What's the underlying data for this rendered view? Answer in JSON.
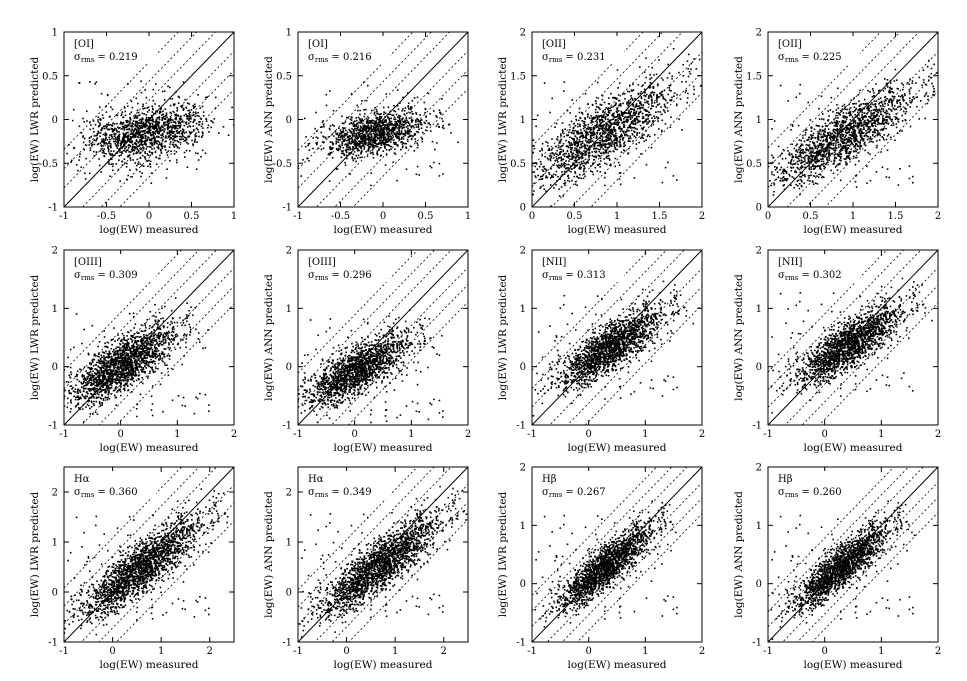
{
  "chart_data": [
    {
      "type": "scatter",
      "label_line": "[OI]",
      "sigma_label": "σ",
      "sigma_sub": "rms",
      "sigma_value": "= 0.219",
      "xlabel": "log(EW) measured",
      "ylabel": "log(EW) LWR predicted",
      "xlim": [
        -1,
        1
      ],
      "ylim": [
        -1,
        1
      ],
      "x_ticks": [
        "-1",
        "-0.5",
        "0",
        "0.5",
        "1"
      ],
      "y_ticks": [
        "-1",
        "-0.5",
        "0",
        "0.5",
        "1"
      ],
      "cloud": {
        "cx": -0.05,
        "cy": -0.15,
        "sx": 0.35,
        "sy": 0.15,
        "slope": 0.15,
        "n": 1300
      },
      "dotted_offsets": [
        -0.657,
        -0.438,
        -0.219,
        0.219,
        0.438,
        0.657
      ]
    },
    {
      "type": "scatter",
      "label_line": "[OI]",
      "sigma_label": "σ",
      "sigma_sub": "rms",
      "sigma_value": "= 0.216",
      "xlabel": "log(EW) measured",
      "ylabel": "log(EW) ANN predicted",
      "xlim": [
        -1,
        1
      ],
      "ylim": [
        -1,
        1
      ],
      "x_ticks": [
        "-1",
        "-0.5",
        "0",
        "0.5",
        "1"
      ],
      "y_ticks": [
        "-1",
        "-0.5",
        "0",
        "0.5",
        "1"
      ],
      "cloud": {
        "cx": -0.08,
        "cy": -0.15,
        "sx": 0.3,
        "sy": 0.12,
        "slope": 0.18,
        "n": 1200
      },
      "dotted_offsets": [
        -0.648,
        -0.432,
        -0.216,
        0.216,
        0.432,
        0.648
      ]
    },
    {
      "type": "scatter",
      "label_line": "[OII]",
      "sigma_label": "σ",
      "sigma_sub": "rms",
      "sigma_value": "= 0.231",
      "xlabel": "log(EW) measured",
      "ylabel": "log(EW) LWR predicted",
      "xlim": [
        0,
        2
      ],
      "ylim": [
        0,
        2
      ],
      "x_ticks": [
        "0",
        "0.5",
        "1",
        "1.5",
        "2"
      ],
      "y_ticks": [
        "0",
        "0.5",
        "1",
        "1.5",
        "2"
      ],
      "cloud": {
        "cx": 0.85,
        "cy": 0.85,
        "sx": 0.4,
        "sy": 0.18,
        "slope": 0.55,
        "n": 1500
      },
      "dotted_offsets": [
        -0.693,
        -0.462,
        -0.231,
        0.231,
        0.462,
        0.693
      ]
    },
    {
      "type": "scatter",
      "label_line": "[OII]",
      "sigma_label": "σ",
      "sigma_sub": "rms",
      "sigma_value": "= 0.225",
      "xlabel": "log(EW) measured",
      "ylabel": "log(EW) ANN predicted",
      "xlim": [
        0,
        2
      ],
      "ylim": [
        0,
        2
      ],
      "x_ticks": [
        "0",
        "0.5",
        "1",
        "1.5",
        "2"
      ],
      "y_ticks": [
        "0",
        "0.5",
        "1",
        "1.5",
        "2"
      ],
      "cloud": {
        "cx": 0.9,
        "cy": 0.82,
        "sx": 0.4,
        "sy": 0.16,
        "slope": 0.55,
        "n": 1500
      },
      "dotted_offsets": [
        -0.675,
        -0.45,
        -0.225,
        0.225,
        0.45,
        0.675
      ]
    },
    {
      "type": "scatter",
      "label_line": "[OIII]",
      "sigma_label": "σ",
      "sigma_sub": "rms",
      "sigma_value": "= 0.309",
      "xlabel": "log(EW) measured",
      "ylabel": "log(EW) LWR predicted",
      "xlim": [
        -1,
        2
      ],
      "ylim": [
        -1,
        2
      ],
      "x_ticks": [
        "-1",
        "0",
        "1",
        "2"
      ],
      "y_ticks": [
        "-1",
        "0",
        "1",
        "2"
      ],
      "cloud": {
        "cx": 0.05,
        "cy": 0.05,
        "sx": 0.45,
        "sy": 0.22,
        "slope": 0.55,
        "n": 1800
      },
      "dotted_offsets": [
        -0.927,
        -0.618,
        -0.309,
        0.309,
        0.618,
        0.927
      ]
    },
    {
      "type": "scatter",
      "label_line": "[OIII]",
      "sigma_label": "σ",
      "sigma_sub": "rms",
      "sigma_value": "= 0.296",
      "xlabel": "log(EW) measured",
      "ylabel": "log(EW) ANN predicted",
      "xlim": [
        -1,
        2
      ],
      "ylim": [
        -1,
        2
      ],
      "x_ticks": [
        "-1",
        "0",
        "1",
        "2"
      ],
      "y_ticks": [
        "-1",
        "0",
        "1",
        "2"
      ],
      "cloud": {
        "cx": 0.05,
        "cy": -0.05,
        "sx": 0.45,
        "sy": 0.2,
        "slope": 0.5,
        "n": 1700
      },
      "dotted_offsets": [
        -0.888,
        -0.592,
        -0.296,
        0.296,
        0.592,
        0.888
      ]
    },
    {
      "type": "scatter",
      "label_line": "[NII]",
      "sigma_label": "σ",
      "sigma_sub": "rms",
      "sigma_value": "= 0.313",
      "xlabel": "log(EW) measured",
      "ylabel": "log(EW) LWR predicted",
      "xlim": [
        -1,
        2
      ],
      "ylim": [
        -1,
        2
      ],
      "x_ticks": [
        "-1",
        "0",
        "1",
        "2"
      ],
      "y_ticks": [
        "-1",
        "0",
        "1",
        "2"
      ],
      "cloud": {
        "cx": 0.4,
        "cy": 0.35,
        "sx": 0.45,
        "sy": 0.2,
        "slope": 0.6,
        "n": 1800
      },
      "dotted_offsets": [
        -0.939,
        -0.626,
        -0.313,
        0.313,
        0.626,
        0.939
      ]
    },
    {
      "type": "scatter",
      "label_line": "[NII]",
      "sigma_label": "σ",
      "sigma_sub": "rms",
      "sigma_value": "= 0.302",
      "xlabel": "log(EW) measured",
      "ylabel": "log(EW) ANN predicted",
      "xlim": [
        -1,
        2
      ],
      "ylim": [
        -1,
        2
      ],
      "x_ticks": [
        "-1",
        "0",
        "1",
        "2"
      ],
      "y_ticks": [
        "-1",
        "0",
        "1",
        "2"
      ],
      "cloud": {
        "cx": 0.45,
        "cy": 0.4,
        "sx": 0.45,
        "sy": 0.2,
        "slope": 0.6,
        "n": 1800
      },
      "dotted_offsets": [
        -0.906,
        -0.604,
        -0.302,
        0.302,
        0.604,
        0.906
      ]
    },
    {
      "type": "scatter",
      "label_line": "Hα",
      "sigma_label": "σ",
      "sigma_sub": "rms",
      "sigma_value": "= 0.360",
      "xlabel": "log(EW) measured",
      "ylabel": "log(EW) LWR predicted",
      "xlim": [
        -1,
        2.5
      ],
      "ylim": [
        -1,
        2.5
      ],
      "x_ticks": [
        "-1",
        "0",
        "1",
        "2"
      ],
      "y_ticks": [
        "-1",
        "0",
        "1",
        "2"
      ],
      "cloud": {
        "cx": 0.6,
        "cy": 0.5,
        "sx": 0.6,
        "sy": 0.25,
        "slope": 0.7,
        "n": 2000
      },
      "dotted_offsets": [
        -1.08,
        -0.72,
        -0.36,
        0.36,
        0.72,
        1.08
      ]
    },
    {
      "type": "scatter",
      "label_line": "Hα",
      "sigma_label": "σ",
      "sigma_sub": "rms",
      "sigma_value": "= 0.349",
      "xlabel": "log(EW) measured",
      "ylabel": "log(EW) ANN predicted",
      "xlim": [
        -1,
        2.5
      ],
      "ylim": [
        -1,
        2.5
      ],
      "x_ticks": [
        "-1",
        "0",
        "1",
        "2"
      ],
      "y_ticks": [
        "-1",
        "0",
        "1",
        "2"
      ],
      "cloud": {
        "cx": 0.7,
        "cy": 0.55,
        "sx": 0.6,
        "sy": 0.25,
        "slope": 0.7,
        "n": 2000
      },
      "dotted_offsets": [
        -1.047,
        -0.698,
        -0.349,
        0.349,
        0.698,
        1.047
      ]
    },
    {
      "type": "scatter",
      "label_line": "Hβ",
      "sigma_label": "σ",
      "sigma_sub": "rms",
      "sigma_value": "= 0.267",
      "xlabel": "log(EW) measured",
      "ylabel": "log(EW) LWR predicted",
      "xlim": [
        -1,
        2
      ],
      "ylim": [
        -1,
        2
      ],
      "x_ticks": [
        "-1",
        "0",
        "1",
        "2"
      ],
      "y_ticks": [
        "-1",
        "0",
        "1",
        "2"
      ],
      "cloud": {
        "cx": 0.3,
        "cy": 0.3,
        "sx": 0.4,
        "sy": 0.18,
        "slope": 0.75,
        "n": 1800
      },
      "dotted_offsets": [
        -0.801,
        -0.534,
        -0.267,
        0.267,
        0.534,
        0.801
      ]
    },
    {
      "type": "scatter",
      "label_line": "Hβ",
      "sigma_label": "σ",
      "sigma_sub": "rms",
      "sigma_value": "= 0.260",
      "xlabel": "log(EW) measured",
      "ylabel": "log(EW) ANN predicted",
      "xlim": [
        -1,
        2
      ],
      "ylim": [
        -1,
        2
      ],
      "x_ticks": [
        "-1",
        "0",
        "1",
        "2"
      ],
      "y_ticks": [
        "-1",
        "0",
        "1",
        "2"
      ],
      "cloud": {
        "cx": 0.3,
        "cy": 0.3,
        "sx": 0.4,
        "sy": 0.18,
        "slope": 0.75,
        "n": 1800
      },
      "dotted_offsets": [
        -0.78,
        -0.52,
        -0.26,
        0.26,
        0.52,
        0.78
      ]
    }
  ]
}
